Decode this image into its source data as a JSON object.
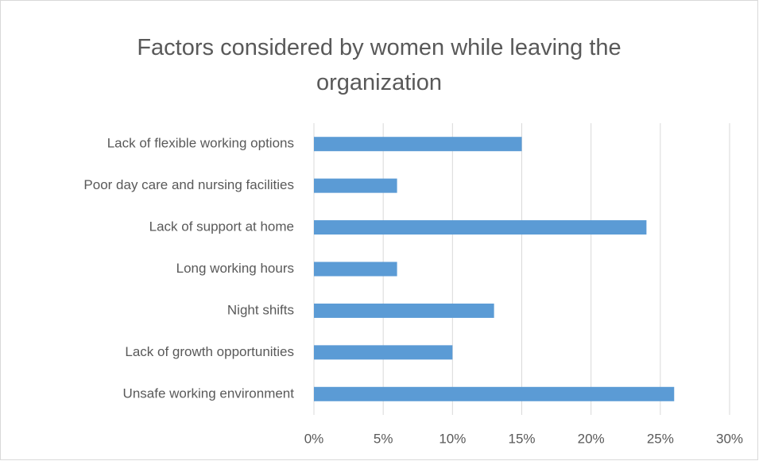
{
  "chart_data": {
    "type": "bar",
    "orientation": "horizontal",
    "title": "Factors considered by women while leaving the organization",
    "categories": [
      "Lack of flexible working options",
      "Poor day care and nursing facilities",
      "Lack of support at home",
      "Long working hours",
      "Night shifts",
      "Lack of growth opportunities",
      "Unsafe working environment"
    ],
    "values": [
      15,
      6,
      24,
      6,
      13,
      10,
      26
    ],
    "color": "#5b9bd5",
    "xlim": [
      0,
      30
    ],
    "xticks": [
      {
        "value": 0,
        "label": "0%"
      },
      {
        "value": 5,
        "label": "5%"
      },
      {
        "value": 10,
        "label": "10%"
      },
      {
        "value": 15,
        "label": "15%"
      },
      {
        "value": 20,
        "label": "20%"
      },
      {
        "value": 25,
        "label": "25%"
      },
      {
        "value": 30,
        "label": "30%"
      }
    ],
    "grid": true
  }
}
